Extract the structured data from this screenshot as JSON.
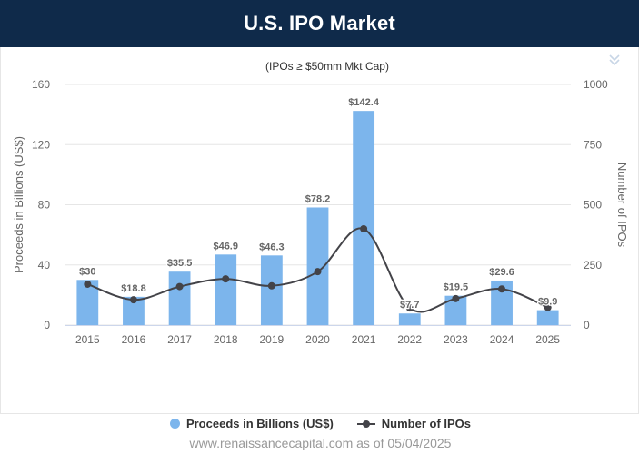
{
  "header": {
    "title": "U.S. IPO Market"
  },
  "chart_data": {
    "type": "bar+line",
    "subtitle": "(IPOs ≥ $50mm Mkt Cap)",
    "categories": [
      "2015",
      "2016",
      "2017",
      "2018",
      "2019",
      "2020",
      "2021",
      "2022",
      "2023",
      "2024",
      "2025"
    ],
    "series": [
      {
        "name": "Proceeds in Billions (US$)",
        "type": "bar",
        "axis": "left",
        "values": [
          30,
          18.8,
          35.5,
          46.9,
          46.3,
          78.2,
          142.4,
          7.7,
          19.5,
          29.6,
          9.9
        ],
        "data_labels": [
          "$30",
          "$18.8",
          "$35.5",
          "$46.9",
          "$46.3",
          "$78.2",
          "$142.4",
          "$7.7",
          "$19.5",
          "$29.6",
          "$9.9"
        ]
      },
      {
        "name": "Number of IPOs",
        "type": "line",
        "axis": "right",
        "values": [
          170,
          105,
          160,
          192,
          163,
          222,
          400,
          71,
          110,
          150,
          73
        ]
      }
    ],
    "y_left": {
      "label": "Proceeds in Billions (US$)",
      "min": 0,
      "max": 160,
      "ticks": [
        "0",
        "40",
        "80",
        "120",
        "160"
      ]
    },
    "y_right": {
      "label": "Number of IPOs",
      "min": 0,
      "max": 1000,
      "ticks": [
        "0",
        "250",
        "500",
        "750",
        "1000"
      ]
    },
    "colors": {
      "bar": "#7cb5ec",
      "line": "#434348",
      "grid": "#e6e6e6",
      "axis_text": "#666666",
      "label_text": "#666666"
    }
  },
  "legend": {
    "bar_label": "Proceeds in Billions (US$)",
    "line_label": "Number of IPOs"
  },
  "credits": "www.renaissancecapital.com as of 05/04/2025",
  "icons": {
    "menu": "double-chevron-down-icon"
  }
}
